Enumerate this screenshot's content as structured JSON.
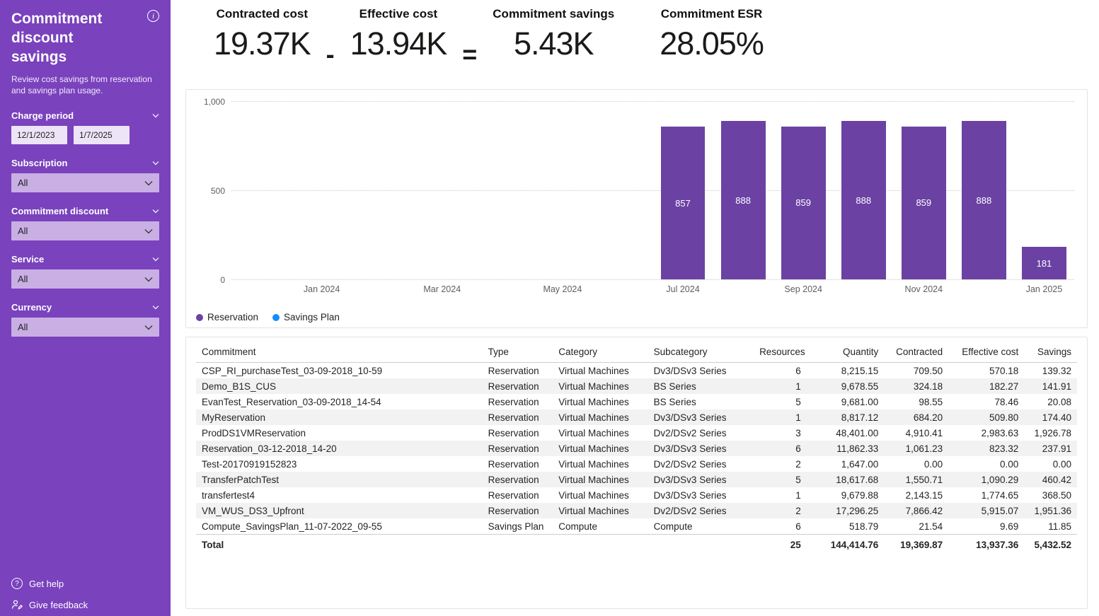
{
  "colors": {
    "sidebar": "#7a42bd",
    "reservation": "#6b42a3",
    "savings_plan": "#118dff"
  },
  "sidebar": {
    "title": "Commitment discount savings",
    "subtitle": "Review cost savings from reservation and savings plan usage.",
    "filters": {
      "charge_period": {
        "label": "Charge period",
        "start": "12/1/2023",
        "end": "1/7/2025"
      },
      "subscription": {
        "label": "Subscription",
        "value": "All"
      },
      "commitment_discount": {
        "label": "Commitment discount",
        "value": "All"
      },
      "service": {
        "label": "Service",
        "value": "All"
      },
      "currency": {
        "label": "Currency",
        "value": "All"
      }
    },
    "footer": {
      "get_help": "Get help",
      "give_feedback": "Give feedback"
    }
  },
  "kpis": {
    "contracted": {
      "label": "Contracted cost",
      "value": "19.37K"
    },
    "effective": {
      "label": "Effective cost",
      "value": "13.94K"
    },
    "savings": {
      "label": "Commitment savings",
      "value": "5.43K"
    },
    "esr": {
      "label": "Commitment ESR",
      "value": "28.05%"
    },
    "op_minus": "-",
    "op_equals": "="
  },
  "chart_data": {
    "type": "bar",
    "title": "",
    "months": [
      "Dec 2023",
      "Jan 2024",
      "Feb 2024",
      "Mar 2024",
      "Apr 2024",
      "May 2024",
      "Jun 2024",
      "Jul 2024",
      "Aug 2024",
      "Sep 2024",
      "Oct 2024",
      "Nov 2024",
      "Dec 2024",
      "Jan 2025"
    ],
    "series": [
      {
        "name": "Reservation",
        "color": "#6b42a3",
        "values": [
          null,
          null,
          null,
          null,
          null,
          null,
          null,
          857,
          888,
          859,
          888,
          859,
          888,
          181
        ]
      },
      {
        "name": "Savings Plan",
        "color": "#118dff",
        "values": [
          null,
          null,
          null,
          null,
          null,
          null,
          null,
          null,
          null,
          null,
          null,
          null,
          null,
          null
        ]
      }
    ],
    "ylim": [
      0,
      1000
    ],
    "y_ticks": [
      "1,000",
      "500",
      "0"
    ],
    "x_ticks": [
      {
        "label": "Jan 2024",
        "index": 1
      },
      {
        "label": "Mar 2024",
        "index": 3
      },
      {
        "label": "May 2024",
        "index": 5
      },
      {
        "label": "Jul 2024",
        "index": 7
      },
      {
        "label": "Sep 2024",
        "index": 9
      },
      {
        "label": "Nov 2024",
        "index": 11
      },
      {
        "label": "Jan 2025",
        "index": 13
      }
    ],
    "grid": "horizontal-dotted",
    "legend_position": "bottom-left"
  },
  "table": {
    "headers": [
      "Commitment",
      "Type",
      "Category",
      "Subcategory",
      "Resources",
      "Quantity",
      "Contracted",
      "Effective cost",
      "Savings"
    ],
    "rows": [
      [
        "CSP_RI_purchaseTest_03-09-2018_10-59",
        "Reservation",
        "Virtual Machines",
        "Dv3/DSv3 Series",
        "6",
        "8,215.15",
        "709.50",
        "570.18",
        "139.32"
      ],
      [
        "Demo_B1S_CUS",
        "Reservation",
        "Virtual Machines",
        "BS Series",
        "1",
        "9,678.55",
        "324.18",
        "182.27",
        "141.91"
      ],
      [
        "EvanTest_Reservation_03-09-2018_14-54",
        "Reservation",
        "Virtual Machines",
        "BS Series",
        "5",
        "9,681.00",
        "98.55",
        "78.46",
        "20.08"
      ],
      [
        "MyReservation",
        "Reservation",
        "Virtual Machines",
        "Dv3/DSv3 Series",
        "1",
        "8,817.12",
        "684.20",
        "509.80",
        "174.40"
      ],
      [
        "ProdDS1VMReservation",
        "Reservation",
        "Virtual Machines",
        "Dv2/DSv2 Series",
        "3",
        "48,401.00",
        "4,910.41",
        "2,983.63",
        "1,926.78"
      ],
      [
        "Reservation_03-12-2018_14-20",
        "Reservation",
        "Virtual Machines",
        "Dv3/DSv3 Series",
        "6",
        "11,862.33",
        "1,061.23",
        "823.32",
        "237.91"
      ],
      [
        "Test-20170919152823",
        "Reservation",
        "Virtual Machines",
        "Dv2/DSv2 Series",
        "2",
        "1,647.00",
        "0.00",
        "0.00",
        "0.00"
      ],
      [
        "TransferPatchTest",
        "Reservation",
        "Virtual Machines",
        "Dv3/DSv3 Series",
        "5",
        "18,617.68",
        "1,550.71",
        "1,090.29",
        "460.42"
      ],
      [
        "transfertest4",
        "Reservation",
        "Virtual Machines",
        "Dv3/DSv3 Series",
        "1",
        "9,679.88",
        "2,143.15",
        "1,774.65",
        "368.50"
      ],
      [
        "VM_WUS_DS3_Upfront",
        "Reservation",
        "Virtual Machines",
        "Dv2/DSv2 Series",
        "2",
        "17,296.25",
        "7,866.42",
        "5,915.07",
        "1,951.36"
      ],
      [
        "Compute_SavingsPlan_11-07-2022_09-55",
        "Savings Plan",
        "Compute",
        "Compute",
        "6",
        "518.79",
        "21.54",
        "9.69",
        "11.85"
      ]
    ],
    "total": [
      "Total",
      "",
      "",
      "",
      "25",
      "144,414.76",
      "19,369.87",
      "13,937.36",
      "5,432.52"
    ]
  }
}
